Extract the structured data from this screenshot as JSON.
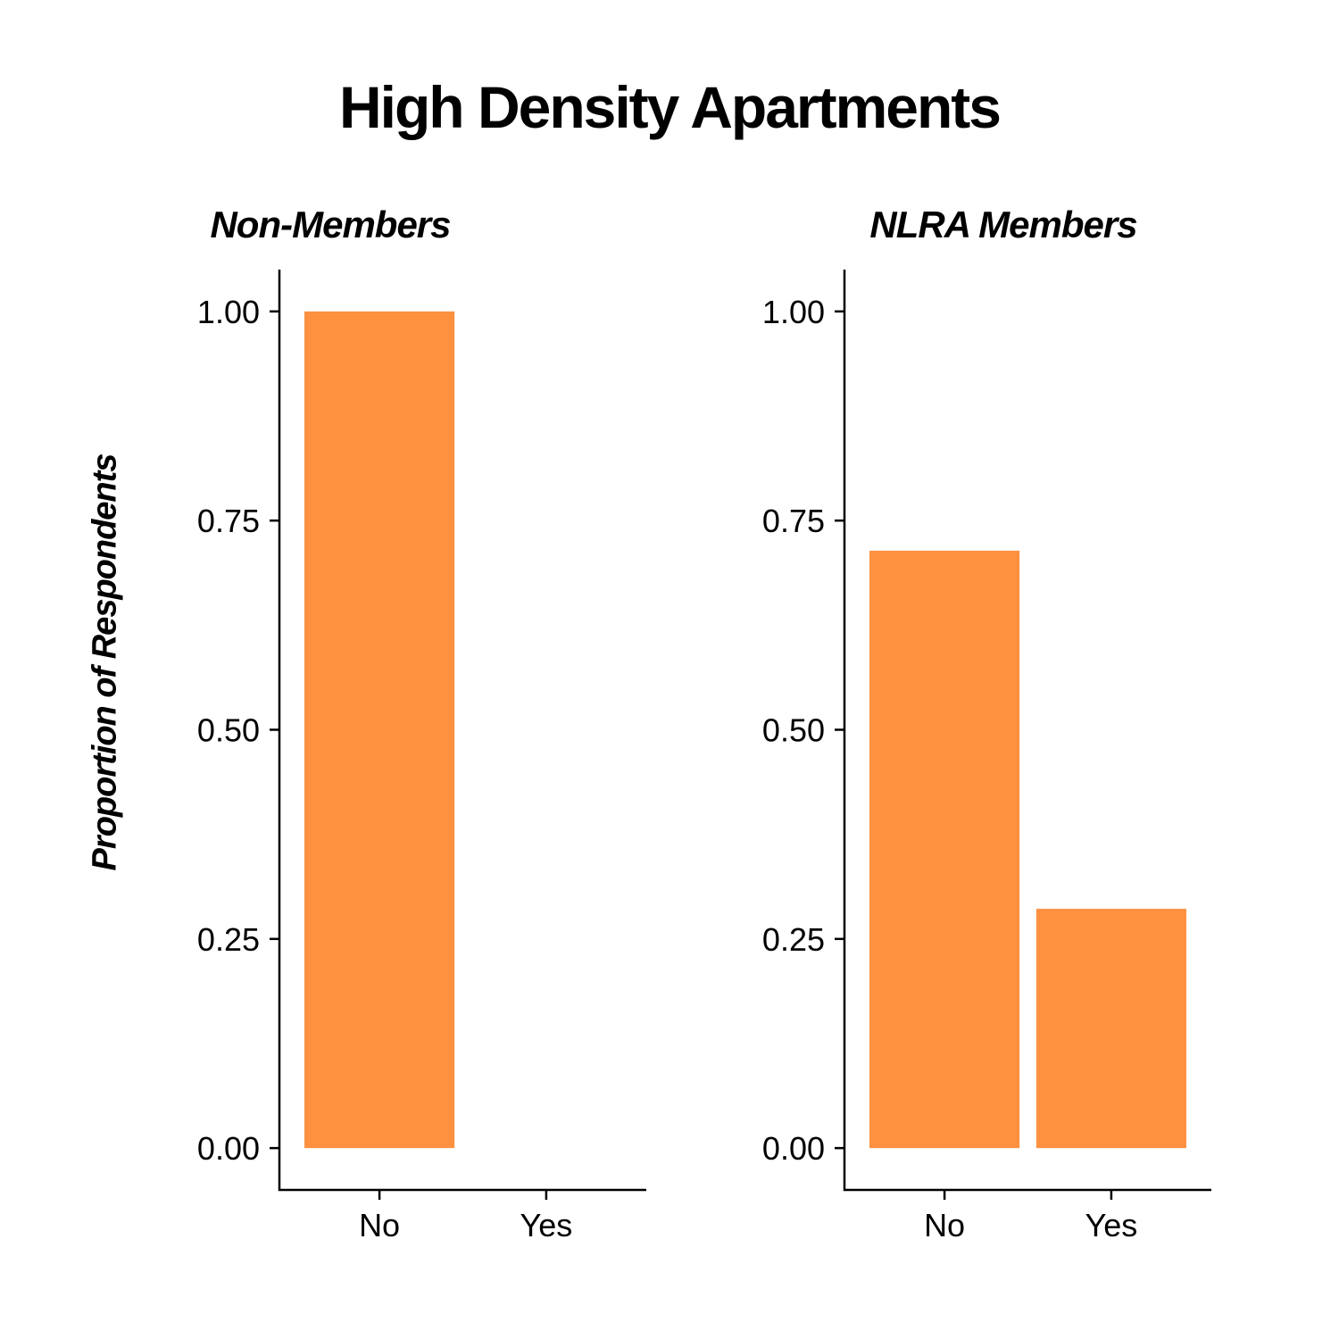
{
  "chart_data": {
    "type": "bar",
    "title": "High Density Apartments",
    "ylabel": "Proportion of Respondents",
    "xlabel": "",
    "ylim": [
      -0.05,
      1.05
    ],
    "yticks": [
      "0.00",
      "0.25",
      "0.50",
      "0.75",
      "1.00"
    ],
    "grid": false,
    "color": "#FD9140",
    "categories": [
      "No",
      "Yes"
    ],
    "facets": [
      {
        "title": "Non-Members",
        "values": [
          1.0,
          0.0
        ]
      },
      {
        "title": "NLRA Members",
        "values": [
          0.714,
          0.286
        ]
      }
    ]
  }
}
